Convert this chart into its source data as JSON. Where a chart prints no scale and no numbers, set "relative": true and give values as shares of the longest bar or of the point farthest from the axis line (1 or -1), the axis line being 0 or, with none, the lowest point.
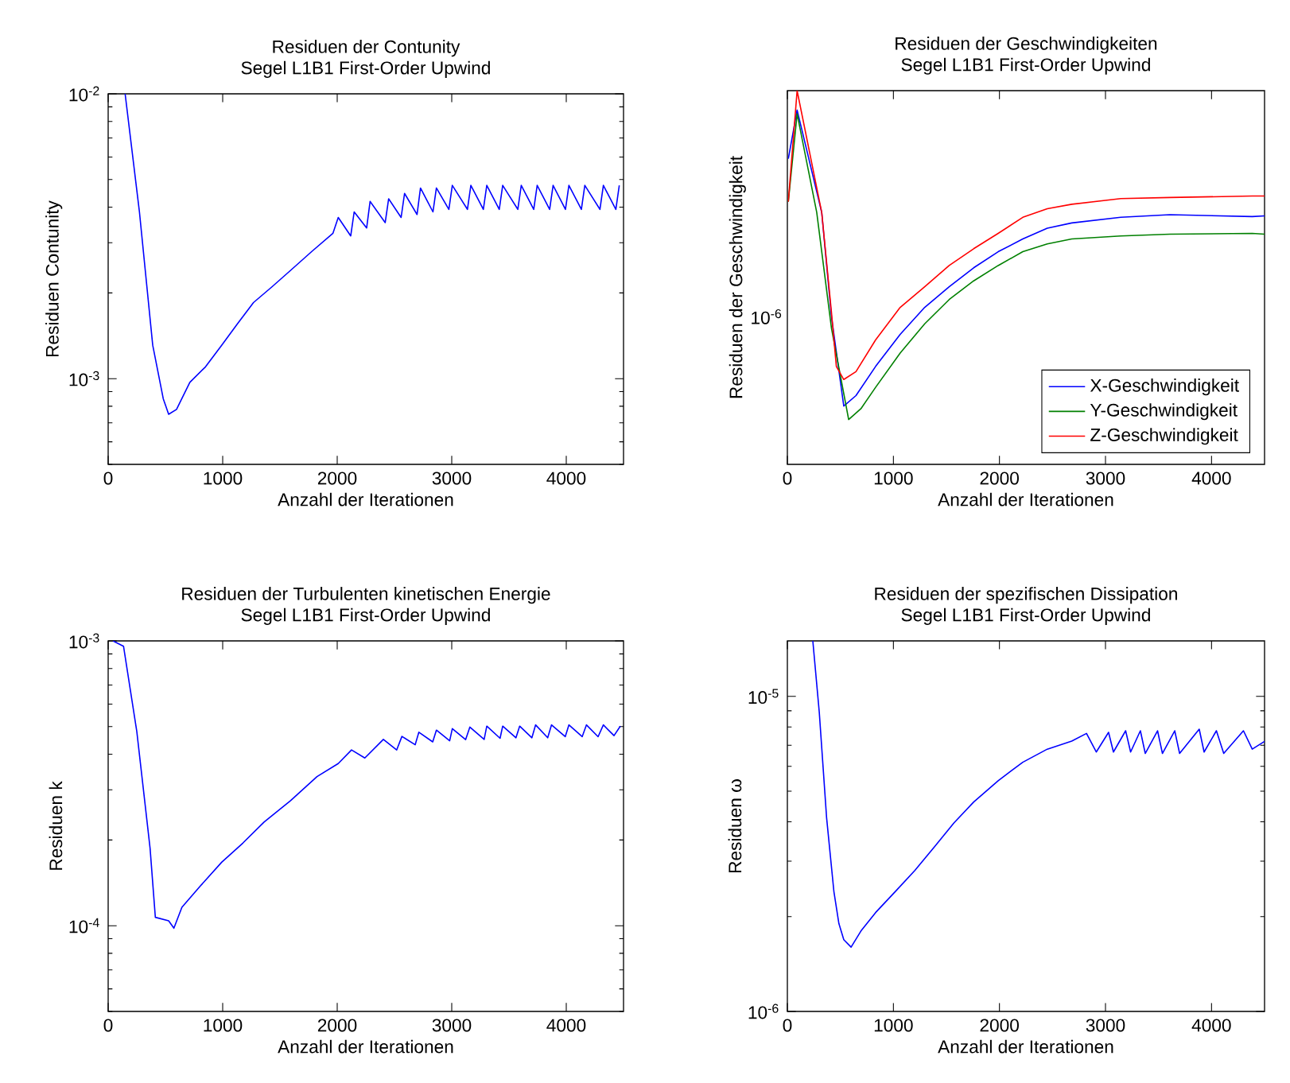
{
  "chart_data": [
    {
      "type": "line",
      "title": "Residuen der Contunity",
      "subtitle": "Segel L1B1 First-Order Upwind",
      "xlabel": "Anzahl der Iterationen",
      "ylabel": "Residuen Contunity",
      "log": true,
      "xlim": [
        0,
        4500
      ],
      "ylim": [
        0.0005,
        0.01
      ],
      "xticks": [
        0,
        1000,
        2000,
        3000,
        4000
      ],
      "yticks": [
        {
          "value": 0.001,
          "label": "10$^{-3}$"
        },
        {
          "value": 0.01,
          "label": "10$^{-2}$"
        }
      ],
      "series": [
        {
          "color": "#0000ff",
          "x": [
            148,
            273,
            389,
            481,
            528,
            597,
            713,
            850,
            991,
            1130,
            1269,
            1430,
            1593,
            1780,
            1963,
            2009,
            2118,
            2148,
            2257,
            2287,
            2419,
            2449,
            2558,
            2588,
            2697,
            2727,
            2836,
            2866,
            2975,
            3005,
            3137,
            3167,
            3276,
            3306,
            3415,
            3445,
            3577,
            3607,
            3716,
            3746,
            3855,
            3885,
            3993,
            4023,
            4132,
            4162,
            4294,
            4324,
            4433,
            4463
          ],
          "values": [
            0.01,
            0.00385,
            0.00131,
            0.00085,
            0.00075,
            0.00078,
            0.00097,
            0.0011,
            0.00131,
            0.00156,
            0.00185,
            0.0021,
            0.0024,
            0.0028,
            0.00324,
            0.00368,
            0.00317,
            0.00385,
            0.00338,
            0.00419,
            0.00353,
            0.00428,
            0.00368,
            0.00447,
            0.00377,
            0.00467,
            0.00385,
            0.00467,
            0.00393,
            0.00477,
            0.00393,
            0.00477,
            0.00393,
            0.00477,
            0.00393,
            0.00477,
            0.00393,
            0.00477,
            0.00393,
            0.00477,
            0.00393,
            0.00477,
            0.00393,
            0.00477,
            0.00393,
            0.00477,
            0.00393,
            0.00477,
            0.00393,
            0.00477
          ]
        }
      ]
    },
    {
      "type": "line",
      "title": "Residuen der Geschwindigkeiten",
      "subtitle": "Segel L1B1 First-Order Upwind",
      "xlabel": "Anzahl der Iterationen",
      "ylabel": "Residuen der Geschwindigkeit",
      "relative": true,
      "annotations": [
        "10$^{-6}$"
      ],
      "legend": "bottom right",
      "xlim": [
        0,
        4500
      ],
      "xticks": [
        0,
        1000,
        2000,
        3000,
        4000
      ],
      "series": [
        {
          "name": "X-Geschwindigkeit",
          "color": "#0000ff",
          "x": [
            9,
            92,
            324,
            416,
            532,
            647,
            832,
            1064,
            1295,
            1526,
            1757,
            1988,
            2220,
            2451,
            2682,
            3144,
            3607,
            4384,
            4500
          ],
          "values": [
            0.818,
            0.948,
            0.674,
            0.395,
            0.156,
            0.184,
            0.262,
            0.348,
            0.42,
            0.475,
            0.526,
            0.569,
            0.603,
            0.632,
            0.646,
            0.661,
            0.668,
            0.663,
            0.665
          ]
        },
        {
          "name": "Y-Geschwindigkeit",
          "color": "#008000",
          "x": [
            9,
            92,
            277,
            416,
            578,
            694,
            832,
            1064,
            1295,
            1526,
            1757,
            1988,
            2220,
            2451,
            2682,
            3144,
            3607,
            4384,
            4500
          ],
          "values": [
            0.703,
            0.938,
            0.674,
            0.364,
            0.12,
            0.149,
            0.206,
            0.298,
            0.376,
            0.441,
            0.491,
            0.532,
            0.569,
            0.59,
            0.603,
            0.611,
            0.616,
            0.618,
            0.616
          ]
        },
        {
          "name": "Z-Geschwindigkeit",
          "color": "#ff0000",
          "x": [
            9,
            92,
            324,
            416,
            462,
            532,
            647,
            832,
            1064,
            1295,
            1526,
            1757,
            1988,
            2220,
            2451,
            2682,
            3144,
            3607,
            4384,
            4500
          ],
          "values": [
            0.703,
            1,
            0.674,
            0.406,
            0.262,
            0.227,
            0.248,
            0.333,
            0.42,
            0.475,
            0.532,
            0.577,
            0.618,
            0.661,
            0.684,
            0.696,
            0.711,
            0.714,
            0.718,
            0.718
          ]
        }
      ]
    },
    {
      "type": "line",
      "title": "Residuen der Turbulenten kinetischen Energie",
      "subtitle": "Segel L1B1 First-Order Upwind",
      "xlabel": "Anzahl der Iterationen",
      "ylabel": "Residuen k",
      "log": true,
      "xlim": [
        0,
        4500
      ],
      "ylim": [
        5e-05,
        0.001
      ],
      "xticks": [
        0,
        1000,
        2000,
        3000,
        4000
      ],
      "yticks": [
        {
          "value": 0.0001,
          "label": "10$^{-4}$"
        },
        {
          "value": 0.001,
          "label": "10$^{-3}$"
        }
      ],
      "series": [
        {
          "color": "#0000ff",
          "x": [
            42,
            134,
            250,
            366,
            412,
            528,
            574,
            644,
            806,
            991,
            1176,
            1361,
            1593,
            1824,
            2009,
            2125,
            2241,
            2403,
            2519,
            2565,
            2681,
            2713,
            2834,
            2866,
            2982,
            3005,
            3121,
            3158,
            3283,
            3306,
            3422,
            3445,
            3561,
            3593,
            3700,
            3732,
            3838,
            3871,
            3991,
            4023,
            4139,
            4176,
            4278,
            4324,
            4417,
            4472
          ],
          "values": [
            0.001,
            0.000958,
            0.000481,
            0.000187,
            0.000107,
            0.000104,
            9.8e-05,
            0.000116,
            0.000138,
            0.000167,
            0.000195,
            0.000231,
            0.000275,
            0.000334,
            0.000371,
            0.000414,
            0.000388,
            0.000451,
            0.000414,
            0.000462,
            0.000432,
            0.000478,
            0.000442,
            0.000486,
            0.000446,
            0.000492,
            0.00045,
            0.000498,
            0.000451,
            0.000502,
            0.000455,
            0.000502,
            0.000457,
            0.000502,
            0.000457,
            0.000507,
            0.000457,
            0.000507,
            0.000461,
            0.000507,
            0.000461,
            0.000507,
            0.000461,
            0.000507,
            0.000465,
            0.000502
          ]
        }
      ]
    },
    {
      "type": "line",
      "title": "Residuen der spezifischen Dissipation",
      "subtitle": "Segel L1B1 First-Order Upwind",
      "xlabel": "Anzahl der Iterationen",
      "ylabel": "Residuen ω",
      "log": true,
      "xlim": [
        0,
        4500
      ],
      "ylim": [
        1e-06,
        1.5e-05
      ],
      "xticks": [
        0,
        1000,
        2000,
        3000,
        4000
      ],
      "yticks": [
        {
          "value": 1e-06,
          "label": "10$^{-6}$"
        },
        {
          "value": 1e-05,
          "label": "10$^{-5}$"
        }
      ],
      "series": [
        {
          "color": "#0000ff",
          "x": [
            240,
            301,
            370,
            439,
            486,
            532,
            601,
            694,
            832,
            1017,
            1202,
            1387,
            1572,
            1757,
            1988,
            2220,
            2451,
            2682,
            2821,
            2913,
            3029,
            3075,
            3190,
            3237,
            3329,
            3375,
            3491,
            3537,
            3653,
            3699,
            3884,
            3930,
            4046,
            4115,
            4301,
            4384,
            4500
          ],
          "values": [
            1.5e-05,
            8.9e-06,
            4.12e-06,
            2.4e-06,
            1.9e-06,
            1.69e-06,
            1.6e-06,
            1.8e-06,
            2.06e-06,
            2.4e-06,
            2.8e-06,
            3.33e-06,
            3.97e-06,
            4.62e-06,
            5.4e-06,
            6.18e-06,
            6.8e-06,
            7.21e-06,
            7.63e-06,
            6.66e-06,
            7.69e-06,
            6.66e-06,
            7.78e-06,
            6.66e-06,
            7.78e-06,
            6.59e-06,
            7.78e-06,
            6.59e-06,
            7.78e-06,
            6.59e-06,
            7.87e-06,
            6.66e-06,
            7.78e-06,
            6.59e-06,
            7.78e-06,
            6.8e-06,
            7.2e-06
          ]
        }
      ]
    }
  ]
}
